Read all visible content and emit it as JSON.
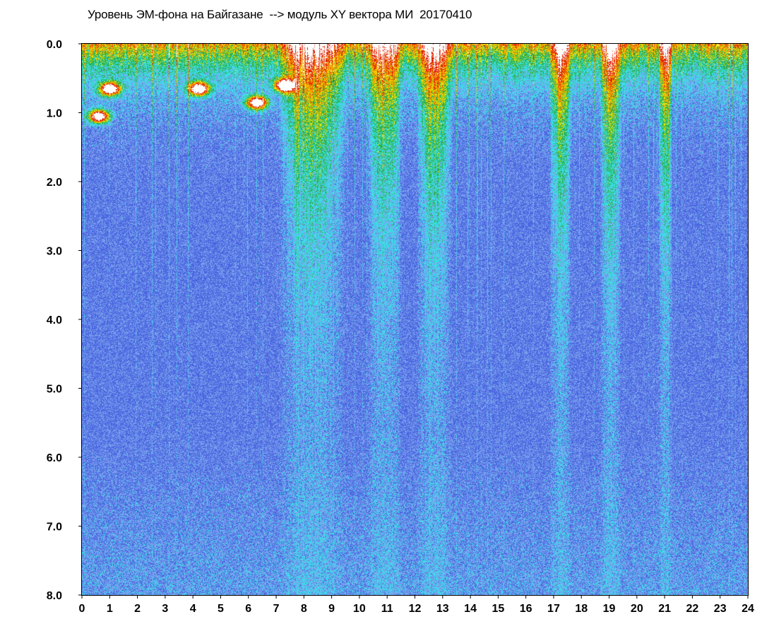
{
  "chart_data": {
    "type": "heatmap",
    "title": "Уровень ЭМ-фона на Байгазане  --> модуль XY вектора МИ  20170410",
    "xlabel": "",
    "ylabel": "",
    "x_range": [
      0,
      24
    ],
    "y_range": [
      0.0,
      8.0
    ],
    "y_inverted": true,
    "x_ticks": [
      "0",
      "1",
      "2",
      "3",
      "4",
      "5",
      "6",
      "7",
      "8",
      "9",
      "10",
      "11",
      "12",
      "13",
      "14",
      "15",
      "16",
      "17",
      "18",
      "19",
      "20",
      "21",
      "22",
      "23",
      "24"
    ],
    "y_ticks": [
      "0.0",
      "1.0",
      "2.0",
      "3.0",
      "4.0",
      "5.0",
      "6.0",
      "7.0",
      "8.0"
    ],
    "grid": false,
    "colormap": [
      "#1f2fd6",
      "#4a66e0",
      "#7aa0ee",
      "#39e0e8",
      "#2bb04a",
      "#f0e000",
      "#f08a00",
      "#e01a00",
      "#ffffff"
    ],
    "disturbed_intervals_hours": [
      [
        7.2,
        9.4
      ],
      [
        10.4,
        11.4
      ],
      [
        12.2,
        13.2
      ],
      [
        17.0,
        17.5
      ],
      [
        18.8,
        19.3
      ],
      [
        20.9,
        21.1
      ]
    ],
    "hot_spots": [
      {
        "x": 1.0,
        "y": 0.65
      },
      {
        "x": 0.6,
        "y": 1.05
      },
      {
        "x": 4.2,
        "y": 0.65
      },
      {
        "x": 7.3,
        "y": 0.6
      },
      {
        "x": 6.3,
        "y": 0.85
      }
    ]
  }
}
